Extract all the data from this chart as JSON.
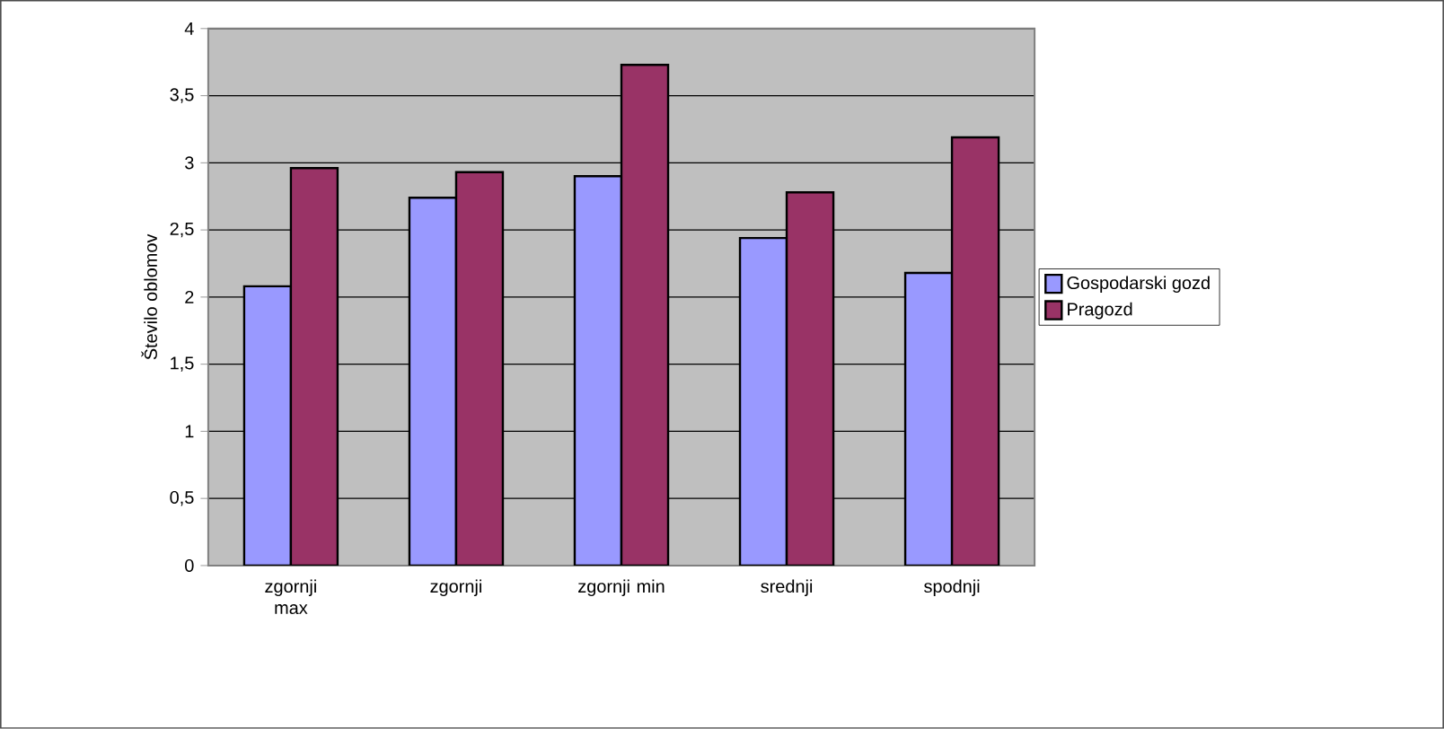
{
  "chart_data": {
    "type": "bar",
    "ylabel": "Število oblomov",
    "categories": [
      "zgornji max",
      "zgornji",
      "zgornji min",
      "srednji",
      "spodnji"
    ],
    "series": [
      {
        "name": "Gospodarski gozd",
        "color": "#9999ff",
        "values": [
          2.08,
          2.74,
          2.9,
          2.44,
          2.18
        ]
      },
      {
        "name": "Pragozd",
        "color": "#993366",
        "values": [
          2.96,
          2.93,
          3.73,
          2.78,
          3.19
        ]
      }
    ],
    "ylim": [
      0,
      4
    ],
    "yticks": [
      0,
      {
        "value": 0.5,
        "label": "0,5"
      },
      1,
      {
        "value": 1.5,
        "label": "1,5"
      },
      2,
      {
        "value": 2.5,
        "label": "2,5"
      },
      3,
      {
        "value": 3.5,
        "label": "3,5"
      },
      4
    ],
    "grid": "y",
    "legend": "right"
  }
}
